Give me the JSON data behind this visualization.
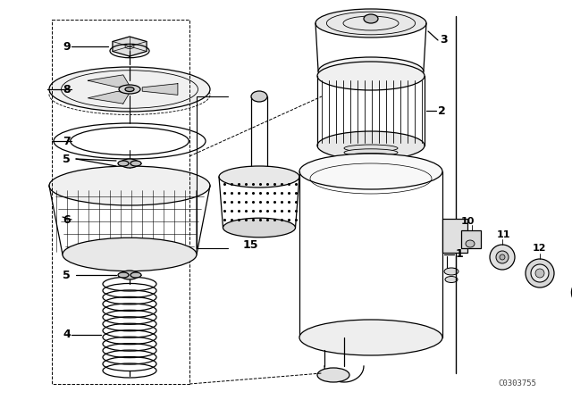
{
  "bg_color": "#ffffff",
  "line_color": "#000000",
  "watermark": "C0303755",
  "label_fontsize": 9,
  "small_label_fontsize": 8
}
